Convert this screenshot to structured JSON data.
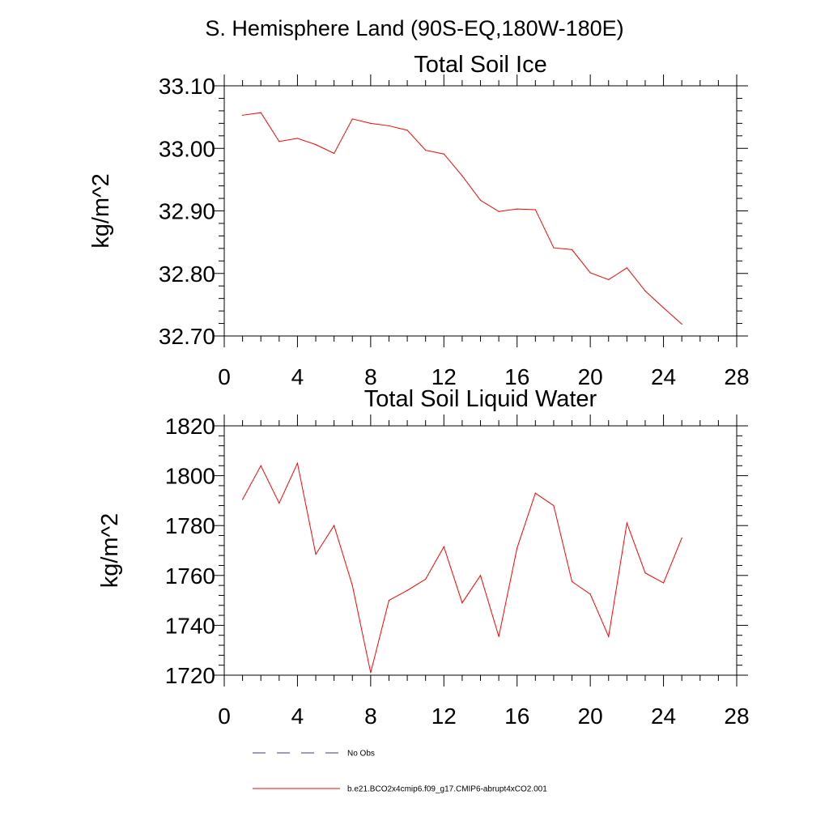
{
  "figure": {
    "title": "S. Hemisphere Land (90S-EQ,180W-180E)"
  },
  "chart_data": [
    {
      "type": "line",
      "title": "Total Soil Ice",
      "xlabel": "",
      "ylabel": "kg/m^2",
      "xlim": [
        0,
        28
      ],
      "ylim": [
        32.7,
        33.1
      ],
      "xticks": [
        0,
        4,
        8,
        12,
        16,
        20,
        24,
        28
      ],
      "xtick_labels": [
        "0",
        "4",
        "8",
        "12",
        "16",
        "20",
        "24",
        "28"
      ],
      "yticks": [
        32.7,
        32.8,
        32.9,
        33.0,
        33.1
      ],
      "ytick_labels": [
        "32.70",
        "32.80",
        "32.90",
        "33.00",
        "33.10"
      ],
      "series": [
        {
          "name": "b.e21.BCO2x4cmip6.f09_g17.CMIP6-abrupt4xCO2.001",
          "color": "#ff0000",
          "x": [
            1,
            2,
            3,
            4,
            5,
            6,
            7,
            8,
            9,
            10,
            11,
            12,
            13,
            14,
            15,
            16,
            17,
            18,
            19,
            20,
            21,
            22,
            23,
            24,
            25
          ],
          "values": [
            33.053,
            33.057,
            33.011,
            33.016,
            33.006,
            32.992,
            33.047,
            33.04,
            33.036,
            33.029,
            32.997,
            32.991,
            32.956,
            32.917,
            32.899,
            32.903,
            32.902,
            32.841,
            32.838,
            32.801,
            32.79,
            32.809,
            32.772,
            32.745,
            32.719
          ]
        }
      ]
    },
    {
      "type": "line",
      "title": "Total Soil Liquid Water",
      "xlabel": "",
      "ylabel": "kg/m^2",
      "xlim": [
        0,
        28
      ],
      "ylim": [
        1720,
        1820
      ],
      "xticks": [
        0,
        4,
        8,
        12,
        16,
        20,
        24,
        28
      ],
      "xtick_labels": [
        "0",
        "4",
        "8",
        "12",
        "16",
        "20",
        "24",
        "28"
      ],
      "yticks": [
        1720,
        1740,
        1760,
        1780,
        1800,
        1820
      ],
      "ytick_labels": [
        "1720",
        "1740",
        "1760",
        "1780",
        "1800",
        "1820"
      ],
      "series": [
        {
          "name": "b.e21.BCO2x4cmip6.f09_g17.CMIP6-abrupt4xCO2.001",
          "color": "#ff0000",
          "x": [
            1,
            2,
            3,
            4,
            5,
            6,
            7,
            8,
            9,
            10,
            11,
            12,
            13,
            14,
            15,
            16,
            17,
            18,
            19,
            20,
            21,
            22,
            23,
            24,
            25
          ],
          "values": [
            1790.5,
            1804,
            1789,
            1805,
            1768.5,
            1780,
            1756,
            1721,
            1750,
            1754,
            1758.5,
            1771.5,
            1749,
            1760,
            1735.5,
            1771,
            1793,
            1788,
            1757.5,
            1752.5,
            1735.5,
            1781,
            1761,
            1757,
            1775
          ]
        }
      ]
    }
  ],
  "legend": {
    "items": [
      {
        "label": "No Obs",
        "style": "dashed",
        "color": "#3b3b7a"
      },
      {
        "label": "b.e21.BCO2x4cmip6.f09_g17.CMIP6-abrupt4xCO2.001",
        "style": "solid",
        "color": "#ff0000"
      }
    ]
  }
}
